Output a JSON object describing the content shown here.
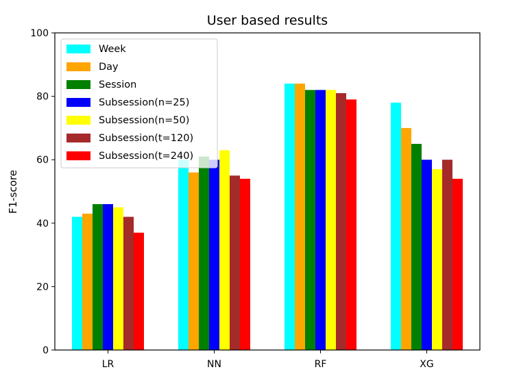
{
  "chart_data": {
    "type": "bar",
    "title": "User based results",
    "xlabel": "",
    "ylabel": "F1-score",
    "ylim": [
      0,
      100
    ],
    "yticks": [
      0,
      20,
      40,
      60,
      80,
      100
    ],
    "categories": [
      "LR",
      "NN",
      "RF",
      "XG"
    ],
    "grid": false,
    "legend_position": "top-left",
    "series": [
      {
        "name": "Week",
        "color": "#00FFFF",
        "values": [
          42,
          60,
          84,
          78
        ]
      },
      {
        "name": "Day",
        "color": "#FFA500",
        "values": [
          43,
          56,
          84,
          70
        ]
      },
      {
        "name": "Session",
        "color": "#008000",
        "values": [
          46,
          61,
          82,
          65
        ]
      },
      {
        "name": "Subsession(n=25)",
        "color": "#0000FF",
        "values": [
          46,
          60,
          82,
          60
        ]
      },
      {
        "name": "Subsession(n=50)",
        "color": "#FFFF00",
        "values": [
          45,
          63,
          82,
          57
        ]
      },
      {
        "name": "Subsession(t=120)",
        "color": "#A52A2A",
        "values": [
          42,
          55,
          81,
          60
        ]
      },
      {
        "name": "Subsession(t=240)",
        "color": "#FF0000",
        "values": [
          37,
          54,
          79,
          54
        ]
      }
    ]
  }
}
